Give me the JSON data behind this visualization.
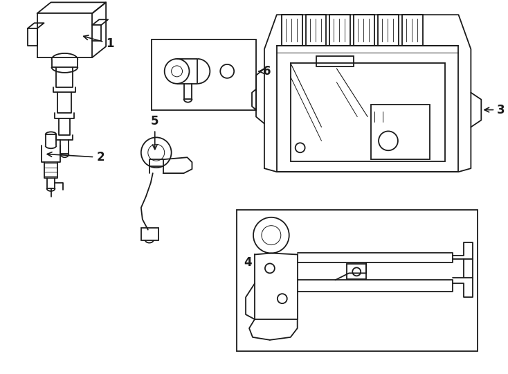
{
  "background_color": "#ffffff",
  "line_color": "#1a1a1a",
  "line_width": 1.3,
  "label_fontsize": 12,
  "fig_width": 7.34,
  "fig_height": 5.4,
  "dpi": 100
}
